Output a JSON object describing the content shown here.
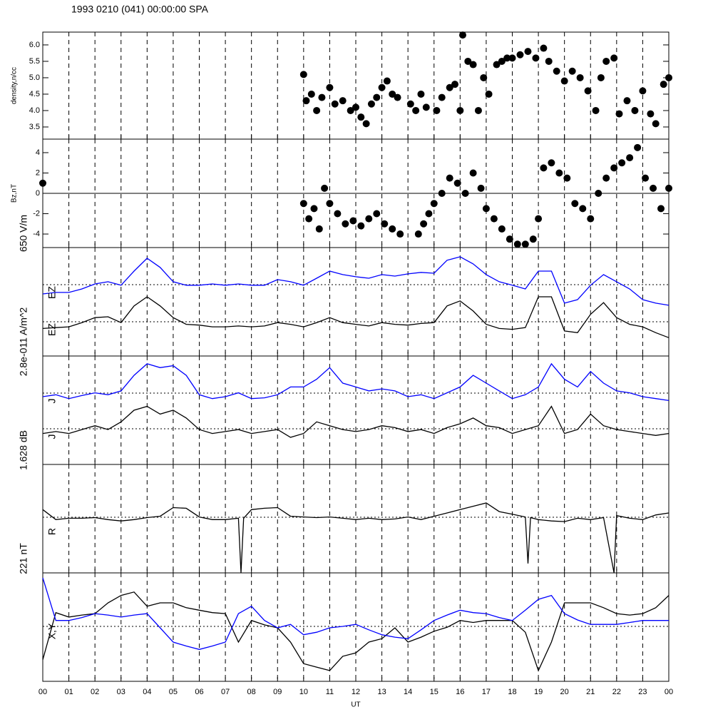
{
  "chart_data": [
    {
      "type": "scatter",
      "title": "1993 0210 (041) 00:00:00 SPA",
      "ylabel": "density,n/cc",
      "color": "#000000",
      "xlim": [
        0,
        24
      ],
      "ylim": [
        3.13,
        6.39
      ],
      "yticks": [
        3.5,
        {
          "value": 4,
          "label": "4.0"
        },
        4.5,
        {
          "value": 5,
          "label": "5.0"
        },
        5.5,
        {
          "value": 6,
          "label": "6.0"
        }
      ],
      "x": [
        10.0,
        10.1,
        10.3,
        10.5,
        10.7,
        11.0,
        11.2,
        11.5,
        11.8,
        12.0,
        12.2,
        12.4,
        12.6,
        12.8,
        13.0,
        13.2,
        13.4,
        13.6,
        14.1,
        14.3,
        14.5,
        14.7,
        15.1,
        15.3,
        15.6,
        15.8,
        16.0,
        16.1,
        16.3,
        16.5,
        16.7,
        16.9,
        17.1,
        17.4,
        17.6,
        17.8,
        18.0,
        18.3,
        18.6,
        18.9,
        19.2,
        19.4,
        19.7,
        20.0,
        20.3,
        20.6,
        20.9,
        21.2,
        21.4,
        21.6,
        21.9,
        22.1,
        22.4,
        22.7,
        23.0,
        23.3,
        23.5,
        23.8,
        24.0
      ],
      "values": [
        5.1,
        4.3,
        4.5,
        4.0,
        4.4,
        4.7,
        4.2,
        4.3,
        4.0,
        4.1,
        3.8,
        3.6,
        4.2,
        4.4,
        4.7,
        4.9,
        4.5,
        4.4,
        4.2,
        4.0,
        4.5,
        4.1,
        4.0,
        4.4,
        4.7,
        4.8,
        4.0,
        6.3,
        5.5,
        5.4,
        4.0,
        5.0,
        4.5,
        5.4,
        5.5,
        5.6,
        5.6,
        5.7,
        5.8,
        5.6,
        5.9,
        5.5,
        5.2,
        4.9,
        5.2,
        5.0,
        4.6,
        4.0,
        5.0,
        5.5,
        5.6,
        3.9,
        4.3,
        4.0,
        4.6,
        3.9,
        3.6,
        4.8,
        5.0
      ]
    },
    {
      "type": "scatter",
      "ylabel": "Bz,nT",
      "color": "#000000",
      "zero_line": true,
      "xlim": [
        0,
        24
      ],
      "ylim": [
        -5.33,
        5.33
      ],
      "yticks": [
        -4,
        -2,
        0,
        2,
        4
      ],
      "x": [
        0,
        10.0,
        10.2,
        10.4,
        10.6,
        10.8,
        11.0,
        11.3,
        11.6,
        11.9,
        12.2,
        12.5,
        12.8,
        13.1,
        13.4,
        13.7,
        14.4,
        14.6,
        14.8,
        15.0,
        15.3,
        15.6,
        15.9,
        16.2,
        16.5,
        16.8,
        17.0,
        17.3,
        17.6,
        17.9,
        18.2,
        18.5,
        18.8,
        19.0,
        19.2,
        19.5,
        19.8,
        20.1,
        20.4,
        20.7,
        21.0,
        21.3,
        21.6,
        21.9,
        22.2,
        22.5,
        22.8,
        23.1,
        23.4,
        23.7,
        24.0
      ],
      "values": [
        1.0,
        -1.0,
        -2.5,
        -1.5,
        -3.5,
        0.5,
        -1.0,
        -2.0,
        -3.0,
        -2.7,
        -3.2,
        -2.5,
        -2.0,
        -3.0,
        -3.5,
        -4.0,
        -4.0,
        -3.0,
        -2.0,
        -1.0,
        0.0,
        1.5,
        1.0,
        0.0,
        2.0,
        0.5,
        -1.5,
        -2.5,
        -3.5,
        -4.5,
        -5.0,
        -5.0,
        -4.5,
        -2.5,
        2.5,
        3.0,
        2.0,
        1.5,
        -1.0,
        -1.5,
        -2.5,
        0.0,
        1.5,
        2.5,
        3.0,
        3.5,
        4.5,
        1.5,
        0.5,
        -1.5,
        0.5
      ]
    },
    {
      "type": "line",
      "ylabel": "650 V/m",
      "xlim": [
        0,
        24
      ],
      "ylim": [
        0,
        650
      ],
      "x": [
        0,
        0.5,
        1,
        1.5,
        2,
        2.5,
        3,
        3.5,
        4,
        4.5,
        5,
        5.5,
        6,
        6.5,
        7,
        7.5,
        8,
        8.5,
        9,
        9.5,
        10,
        10.5,
        11,
        11.5,
        12,
        12.5,
        13,
        13.5,
        14,
        14.5,
        15,
        15.5,
        16,
        16.5,
        17,
        17.5,
        18,
        18.5,
        19,
        19.5,
        20,
        20.5,
        21,
        21.5,
        22,
        22.5,
        23,
        23.5,
        24
      ],
      "series": [
        {
          "name": "EZ",
          "color": "#0000ff",
          "values": [
            372,
            381,
            381,
            402,
            432,
            445,
            424,
            509,
            586,
            531,
            445,
            424,
            424,
            432,
            424,
            432,
            424,
            424,
            458,
            445,
            424,
            466,
            509,
            488,
            475,
            466,
            488,
            479,
            492,
            501,
            496,
            574,
            595,
            552,
            488,
            445,
            424,
            402,
            509,
            509,
            317,
            338,
            424,
            488,
            445,
            402,
            338,
            317,
            304
          ]
        },
        {
          "name": "EZ",
          "color": "#000000",
          "values": [
            165,
            170,
            175,
            200,
            230,
            235,
            200,
            300,
            355,
            300,
            230,
            190,
            185,
            175,
            175,
            180,
            175,
            180,
            200,
            190,
            175,
            200,
            230,
            200,
            190,
            180,
            200,
            190,
            185,
            195,
            200,
            300,
            330,
            270,
            190,
            165,
            160,
            170,
            355,
            355,
            150,
            140,
            250,
            320,
            230,
            190,
            175,
            140,
            110
          ]
        }
      ]
    },
    {
      "type": "line",
      "ylabel": "2.8e-011 A/m^2",
      "xlim": [
        0,
        24
      ],
      "ylim": [
        0,
        2.8
      ],
      "x": [
        0,
        0.5,
        1,
        1.5,
        2,
        2.5,
        3,
        3.5,
        4,
        4.5,
        5,
        5.5,
        6,
        6.5,
        7,
        7.5,
        8,
        8.5,
        9,
        9.5,
        10,
        10.5,
        11,
        11.5,
        12,
        12.5,
        13,
        13.5,
        14,
        14.5,
        15,
        15.5,
        16,
        16.5,
        17,
        17.5,
        18,
        18.5,
        19,
        19.5,
        20,
        20.5,
        21,
        21.5,
        22,
        22.5,
        23,
        23.5,
        24
      ],
      "series": [
        {
          "name": "J",
          "color": "#0000ff",
          "values": [
            1.75,
            1.8,
            1.7,
            1.78,
            1.85,
            1.8,
            1.9,
            2.3,
            2.6,
            2.5,
            2.55,
            2.3,
            1.8,
            1.7,
            1.75,
            1.85,
            1.7,
            1.72,
            1.8,
            2.0,
            2.0,
            2.2,
            2.5,
            2.1,
            2.0,
            1.9,
            1.95,
            1.9,
            1.75,
            1.8,
            1.7,
            1.85,
            2.0,
            2.3,
            2.1,
            1.9,
            1.7,
            1.8,
            2.0,
            2.6,
            2.2,
            2.0,
            2.4,
            2.1,
            1.9,
            1.85,
            1.75,
            1.7,
            1.65
          ]
        },
        {
          "name": "J",
          "color": "#000000",
          "values": [
            0.8,
            0.85,
            0.8,
            0.9,
            1.0,
            0.9,
            1.1,
            1.4,
            1.5,
            1.3,
            1.4,
            1.2,
            0.9,
            0.8,
            0.85,
            0.9,
            0.8,
            0.85,
            0.9,
            0.7,
            0.8,
            1.1,
            1.0,
            0.9,
            0.85,
            0.9,
            1.0,
            0.95,
            0.85,
            0.9,
            0.8,
            0.95,
            1.05,
            1.2,
            1.0,
            0.95,
            0.8,
            0.9,
            1.0,
            1.5,
            0.8,
            0.9,
            1.3,
            1.0,
            0.9,
            0.85,
            0.8,
            0.75,
            0.8
          ]
        }
      ]
    },
    {
      "type": "line",
      "ylabel": "1.628 dB",
      "xlim": [
        0,
        24
      ],
      "ylim": [
        0,
        1.628
      ],
      "x": [
        0,
        0.5,
        1,
        1.5,
        2,
        2.5,
        3,
        3.5,
        4,
        4.5,
        5,
        5.5,
        6,
        6.5,
        7,
        7.5,
        7.6,
        7.7,
        8,
        8.5,
        9,
        9.5,
        10,
        10.5,
        11,
        11.5,
        12,
        12.5,
        13,
        13.5,
        14,
        14.5,
        15,
        15.5,
        16,
        16.5,
        17,
        17.5,
        18,
        18.5,
        18.6,
        18.7,
        19,
        19.5,
        20,
        20.5,
        21,
        21.5,
        21.9,
        22,
        22.5,
        23,
        23.5,
        24
      ],
      "series": [
        {
          "name": "R",
          "color": "#000000",
          "values": [
            0.95,
            0.8,
            0.82,
            0.82,
            0.83,
            0.8,
            0.78,
            0.8,
            0.83,
            0.85,
            0.98,
            0.97,
            0.84,
            0.8,
            0.8,
            0.82,
            0,
            0.82,
            0.95,
            0.97,
            0.98,
            0.85,
            0.84,
            0.83,
            0.84,
            0.82,
            0.8,
            0.82,
            0.8,
            0.81,
            0.84,
            0.8,
            0.85,
            0.9,
            0.95,
            1.0,
            1.05,
            0.92,
            0.88,
            0.84,
            0.14,
            0.83,
            0.8,
            0.78,
            0.77,
            0.82,
            0.8,
            0.83,
            0,
            0.86,
            0.82,
            0.8,
            0.87,
            0.9
          ]
        }
      ]
    },
    {
      "type": "line",
      "ylabel": "221 nT",
      "label": "X,Y",
      "xlabel": "UT",
      "xlim": [
        0,
        24
      ],
      "ylim": [
        0,
        221
      ],
      "xticks": [
        {
          "value": 0,
          "label": "00"
        },
        {
          "value": 1,
          "label": "01"
        },
        {
          "value": 2,
          "label": "02"
        },
        {
          "value": 3,
          "label": "03"
        },
        {
          "value": 4,
          "label": "04"
        },
        {
          "value": 5,
          "label": "05"
        },
        {
          "value": 6,
          "label": "06"
        },
        {
          "value": 7,
          "label": "07"
        },
        {
          "value": 8,
          "label": "08"
        },
        {
          "value": 9,
          "label": "09"
        },
        10,
        11,
        12,
        13,
        14,
        15,
        16,
        17,
        18,
        19,
        20,
        21,
        22,
        23,
        {
          "value": 24,
          "label": "00"
        }
      ],
      "x": [
        0,
        0.5,
        1,
        1.5,
        2,
        2.5,
        3,
        3.5,
        4,
        4.5,
        5,
        5.5,
        6,
        6.5,
        7,
        7.5,
        8,
        8.5,
        9,
        9.5,
        10,
        10.5,
        11,
        11.5,
        12,
        12.5,
        13,
        13.5,
        14,
        14.5,
        15,
        15.5,
        16,
        16.5,
        17,
        17.5,
        18,
        18.5,
        19,
        19.5,
        20,
        20.5,
        21,
        21.5,
        22,
        22.5,
        23,
        23.5,
        24
      ],
      "series": [
        {
          "color": "#000000",
          "values": [
            44,
            140,
            131,
            135,
            138,
            160,
            175,
            182,
            153,
            160,
            160,
            150,
            145,
            140,
            138,
            80,
            124,
            115,
            109,
            80,
            36,
            29,
            22,
            51,
            58,
            80,
            87,
            109,
            80,
            90,
            102,
            110,
            124,
            120,
            124,
            124,
            124,
            100,
            22,
            80,
            160,
            160,
            160,
            150,
            138,
            135,
            138,
            150,
            175
          ]
        },
        {
          "color": "#0000ff",
          "values": [
            211,
            124,
            124,
            130,
            138,
            135,
            131,
            135,
            138,
            109,
            80,
            72,
            65,
            72,
            80,
            138,
            153,
            124,
            109,
            116,
            95,
            100,
            109,
            112,
            116,
            105,
            95,
            90,
            87,
            105,
            124,
            135,
            145,
            140,
            138,
            130,
            124,
            145,
            167,
            175,
            138,
            125,
            116,
            116,
            116,
            120,
            124,
            124,
            124
          ]
        }
      ]
    }
  ]
}
